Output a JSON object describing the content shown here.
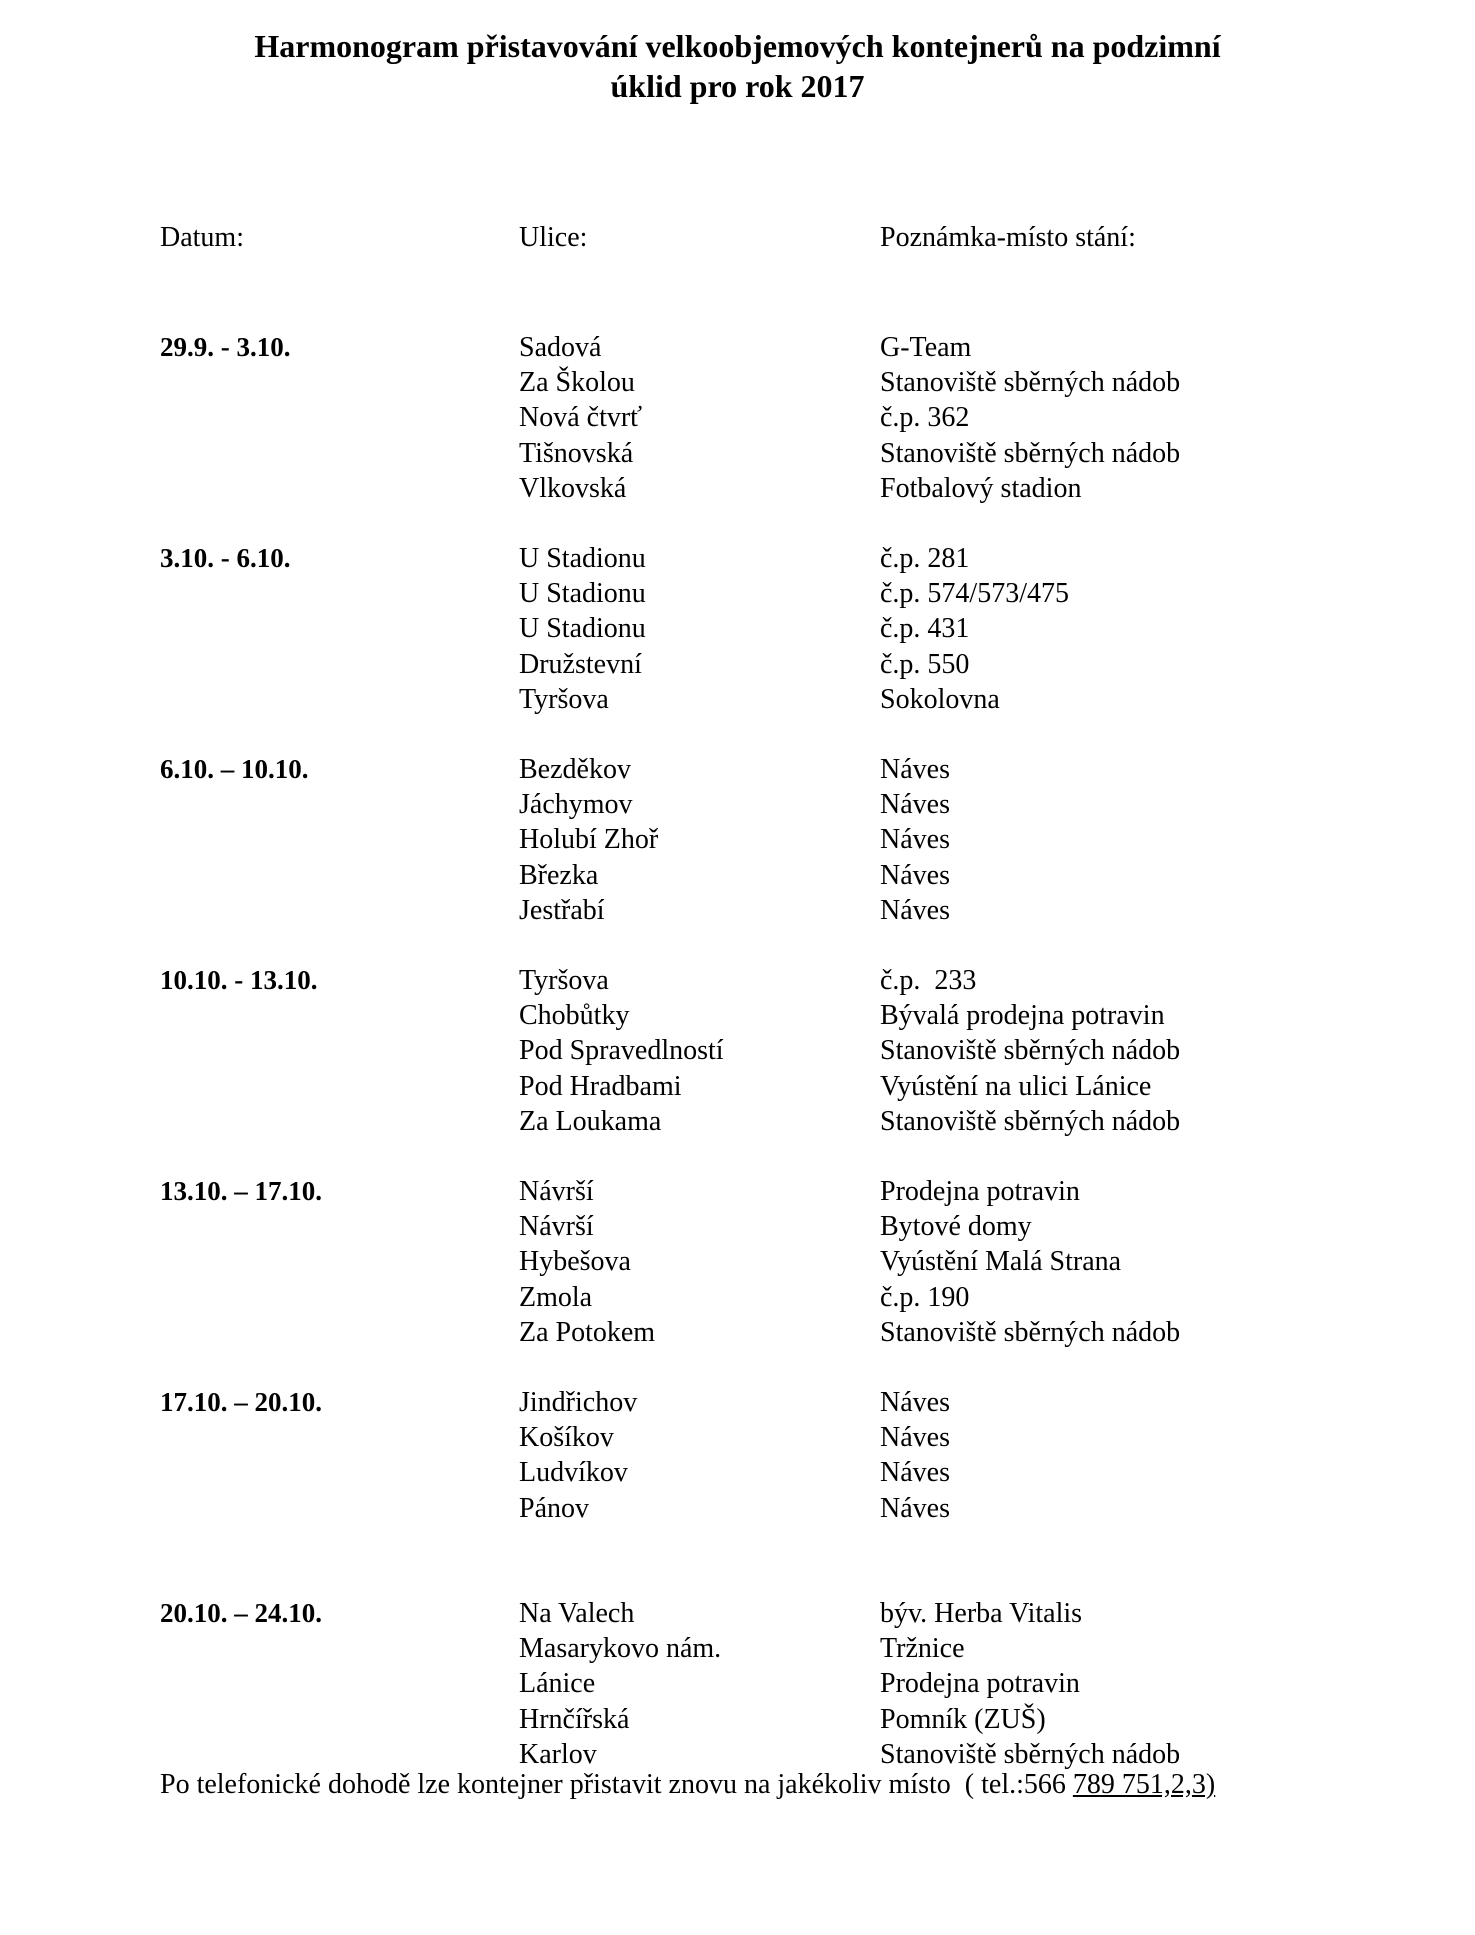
{
  "title": {
    "line1": "Harmonogram přistavování velkoobjemových kontejnerů na podzimní",
    "line2": "úklid pro rok 2017"
  },
  "headers": {
    "date": "Datum:",
    "street": "Ulice:",
    "note": "Poznámka-místo stání:"
  },
  "groups": [
    {
      "date": "29.9. -  3.10.",
      "rows": [
        {
          "street": "Sadová",
          "note": "G-Team"
        },
        {
          "street": "Za Školou",
          "note": "Stanoviště sběrných nádob"
        },
        {
          "street": "Nová čtvrť",
          "note": "č.p. 362"
        },
        {
          "street": "Tišnovská",
          "note": "Stanoviště sběrných nádob"
        },
        {
          "street": "Vlkovská",
          "note": "Fotbalový stadion"
        }
      ]
    },
    {
      "date": "3.10. -  6.10.",
      "rows": [
        {
          "street": "U Stadionu",
          "note": "č.p. 281"
        },
        {
          "street": "U Stadionu",
          "note": "č.p. 574/573/475"
        },
        {
          "street": "U Stadionu",
          "note": "č.p. 431"
        },
        {
          "street": "Družstevní",
          "note": "č.p. 550"
        },
        {
          "street": "Tyršova",
          "note": "Sokolovna"
        }
      ]
    },
    {
      "date": "6.10. – 10.10.",
      "rows": [
        {
          "street": "Bezděkov",
          "note": "Náves"
        },
        {
          "street": "Jáchymov",
          "note": "Náves"
        },
        {
          "street": "Holubí Zhoř",
          "note": "Náves"
        },
        {
          "street": "Březka",
          "note": "Náves"
        },
        {
          "street": "Jestřabí",
          "note": "Náves"
        }
      ]
    },
    {
      "date": "10.10. - 13.10.",
      "rows": [
        {
          "street": "Tyršova",
          "note": "č.p.  233"
        },
        {
          "street": "Chobůtky",
          "note": "Bývalá prodejna potravin"
        },
        {
          "street": "Pod Spravedlností",
          "note": "Stanoviště sběrných nádob"
        },
        {
          "street": "Pod Hradbami",
          "note": "Vyústění na ulici Lánice"
        },
        {
          "street": "Za Loukama",
          "note": "Stanoviště sběrných nádob"
        }
      ]
    },
    {
      "date": "13.10. – 17.10.",
      "rows": [
        {
          "street": "Návrší",
          "note": "Prodejna potravin"
        },
        {
          "street": "Návrší",
          "note": "Bytové domy"
        },
        {
          "street": "Hybešova",
          "note": "Vyústění Malá Strana"
        },
        {
          "street": "Zmola",
          "note": "č.p. 190"
        },
        {
          "street": "Za Potokem",
          "note": "Stanoviště sběrných nádob"
        }
      ]
    },
    {
      "date": "17.10. – 20.10.",
      "rows": [
        {
          "street": "Jindřichov",
          "note": "Náves"
        },
        {
          "street": "Košíkov",
          "note": "Náves"
        },
        {
          "street": "Ludvíkov",
          "note": "Náves"
        },
        {
          "street": "Pánov",
          "note": "Náves"
        }
      ]
    },
    {
      "date": "20.10. – 24.10.",
      "rows": [
        {
          "street": "Na Valech",
          "note": "býv. Herba Vitalis"
        },
        {
          "street": "Masarykovo nám.",
          "note": "Tržnice"
        },
        {
          "street": "Lánice",
          "note": "Prodejna potravin"
        },
        {
          "street": "Hrnčířská",
          "note": "Pomník (ZUŠ)"
        },
        {
          "street": "Karlov",
          "note": "Stanoviště sběrných nádob"
        }
      ]
    }
  ],
  "footer": {
    "text": "Po telefonické dohodě lze kontejner přistavit znovu na jakékoliv místo  ( tel.:566 ",
    "phone_underlined": "789 751,2,3)"
  }
}
